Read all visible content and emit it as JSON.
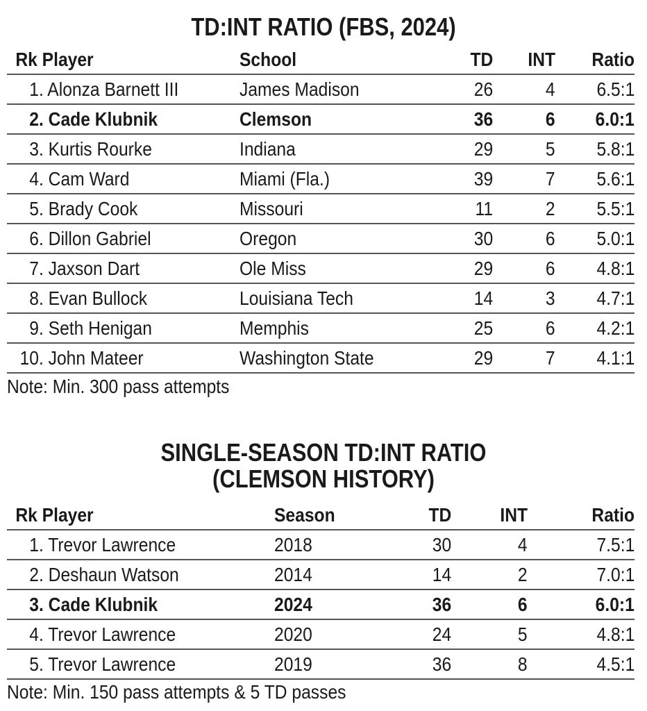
{
  "table1": {
    "title": "TD:INT RATIO (FBS, 2024)",
    "headers": {
      "rk": "Rk",
      "player": "Player",
      "school": "School",
      "td": "TD",
      "int": "INT",
      "ratio": "Ratio"
    },
    "rows": [
      {
        "rank": "1.",
        "player": "Alonza Barnett III",
        "school": "James Madison",
        "td": "26",
        "int": "4",
        "ratio": "6.5:1",
        "highlight": false
      },
      {
        "rank": "2.",
        "player": "Cade Klubnik",
        "school": "Clemson",
        "td": "36",
        "int": "6",
        "ratio": "6.0:1",
        "highlight": true
      },
      {
        "rank": "3.",
        "player": "Kurtis Rourke",
        "school": "Indiana",
        "td": "29",
        "int": "5",
        "ratio": "5.8:1",
        "highlight": false
      },
      {
        "rank": "4.",
        "player": "Cam Ward",
        "school": "Miami (Fla.)",
        "td": "39",
        "int": "7",
        "ratio": "5.6:1",
        "highlight": false
      },
      {
        "rank": "5.",
        "player": "Brady Cook",
        "school": "Missouri",
        "td": "11",
        "int": "2",
        "ratio": "5.5:1",
        "highlight": false
      },
      {
        "rank": "6.",
        "player": "Dillon Gabriel",
        "school": "Oregon",
        "td": "30",
        "int": "6",
        "ratio": "5.0:1",
        "highlight": false
      },
      {
        "rank": "7.",
        "player": "Jaxson Dart",
        "school": "Ole Miss",
        "td": "29",
        "int": "6",
        "ratio": "4.8:1",
        "highlight": false
      },
      {
        "rank": "8.",
        "player": "Evan Bullock",
        "school": "Louisiana Tech",
        "td": "14",
        "int": "3",
        "ratio": "4.7:1",
        "highlight": false
      },
      {
        "rank": "9.",
        "player": "Seth Henigan",
        "school": "Memphis",
        "td": "25",
        "int": "6",
        "ratio": "4.2:1",
        "highlight": false
      },
      {
        "rank": "10.",
        "player": "John Mateer",
        "school": "Washington State",
        "td": "29",
        "int": "7",
        "ratio": "4.1:1",
        "highlight": false
      }
    ],
    "note": "Note: Min. 300 pass attempts"
  },
  "table2": {
    "title_line1": "SINGLE-SEASON TD:INT RATIO",
    "title_line2": "(CLEMSON HISTORY)",
    "headers": {
      "rk": "Rk",
      "player": "Player",
      "season": "Season",
      "td": "TD",
      "int": "INT",
      "ratio": "Ratio"
    },
    "rows": [
      {
        "rank": "1.",
        "player": "Trevor Lawrence",
        "season": "2018",
        "td": "30",
        "int": "4",
        "ratio": "7.5:1",
        "highlight": false
      },
      {
        "rank": "2.",
        "player": "Deshaun Watson",
        "season": "2014",
        "td": "14",
        "int": "2",
        "ratio": "7.0:1",
        "highlight": false
      },
      {
        "rank": "3.",
        "player": "Cade Klubnik",
        "season": "2024",
        "td": "36",
        "int": "6",
        "ratio": "6.0:1",
        "highlight": true
      },
      {
        "rank": "4.",
        "player": "Trevor Lawrence",
        "season": "2020",
        "td": "24",
        "int": "5",
        "ratio": "4.8:1",
        "highlight": false
      },
      {
        "rank": "5.",
        "player": "Trevor Lawrence",
        "season": "2019",
        "td": "36",
        "int": "8",
        "ratio": "4.5:1",
        "highlight": false
      }
    ],
    "note": "Note: Min. 150 pass attempts & 5 TD passes"
  }
}
